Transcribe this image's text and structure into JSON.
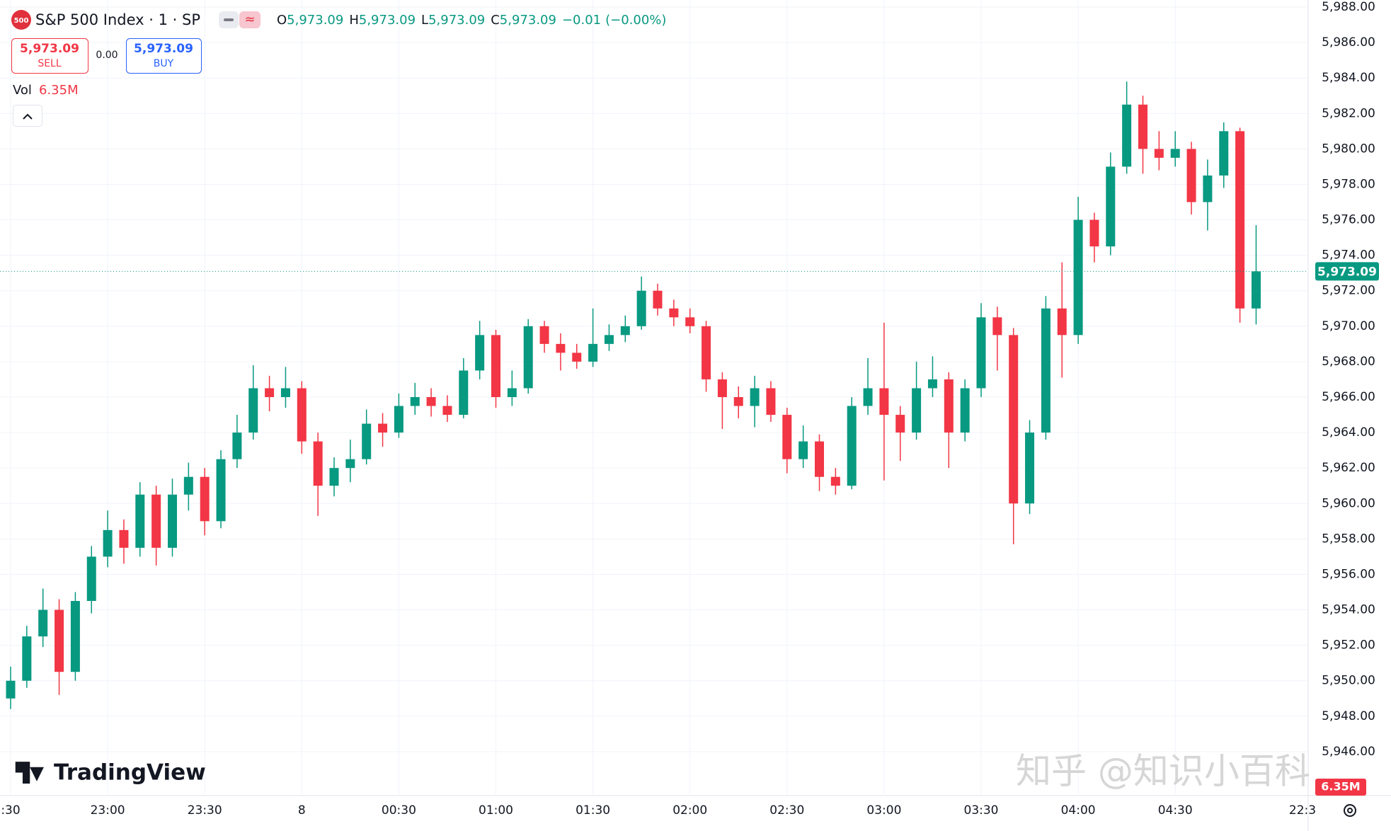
{
  "chart_data": {
    "type": "candlestick",
    "x": [
      "22:30",
      "22:35",
      "22:40",
      "22:45",
      "22:50",
      "22:55",
      "23:00",
      "23:05",
      "23:10",
      "23:15",
      "23:20",
      "23:25",
      "23:30",
      "23:35",
      "23:40",
      "23:45",
      "23:50",
      "23:55",
      "00:00",
      "00:05",
      "00:10",
      "00:15",
      "00:20",
      "00:25",
      "00:30",
      "00:35",
      "00:40",
      "00:45",
      "00:50",
      "00:55",
      "01:00",
      "01:05",
      "01:10",
      "01:15",
      "01:20",
      "01:25",
      "01:30",
      "01:35",
      "01:40",
      "01:45",
      "01:50",
      "01:55",
      "02:00",
      "02:05",
      "02:10",
      "02:15",
      "02:20",
      "02:25",
      "02:30",
      "02:35",
      "02:40",
      "02:45",
      "02:50",
      "02:55",
      "03:00",
      "03:05",
      "03:10",
      "03:15",
      "03:20",
      "03:25",
      "03:30",
      "03:35",
      "03:40",
      "03:45",
      "03:50",
      "03:55",
      "04:00",
      "04:05",
      "04:10",
      "04:15",
      "04:20",
      "04:25",
      "04:30",
      "04:35",
      "04:40",
      "04:45",
      "04:50",
      "04:55"
    ],
    "open": [
      5949.0,
      5950.0,
      5952.5,
      5954.0,
      5950.5,
      5954.5,
      5957.0,
      5958.5,
      5957.5,
      5960.5,
      5957.5,
      5960.5,
      5961.5,
      5959.0,
      5962.5,
      5964.0,
      5966.5,
      5966.0,
      5966.5,
      5963.5,
      5961.0,
      5962.0,
      5962.5,
      5964.5,
      5964.0,
      5965.5,
      5966.0,
      5965.5,
      5965.0,
      5967.5,
      5969.5,
      5966.0,
      5966.5,
      5970.0,
      5969.0,
      5968.5,
      5968.0,
      5969.0,
      5969.5,
      5970.0,
      5972.0,
      5971.0,
      5970.5,
      5970.0,
      5967.0,
      5966.0,
      5965.5,
      5966.5,
      5965.0,
      5962.5,
      5963.5,
      5961.5,
      5961.0,
      5965.5,
      5966.5,
      5965.0,
      5964.0,
      5966.5,
      5967.0,
      5964.0,
      5966.5,
      5970.5,
      5969.5,
      5960.0,
      5964.0,
      5971.0,
      5969.5,
      5976.0,
      5974.5,
      5979.0,
      5982.5,
      5980.0,
      5979.5,
      5980.0,
      5977.0,
      5978.5,
      5981.0,
      5971.0
    ],
    "high": [
      5950.8,
      5953.1,
      5955.2,
      5954.6,
      5955.0,
      5957.6,
      5959.6,
      5959.1,
      5961.2,
      5961.0,
      5961.4,
      5962.3,
      5962.0,
      5963.0,
      5965.0,
      5967.8,
      5967.2,
      5967.7,
      5966.9,
      5964.0,
      5962.6,
      5963.6,
      5965.3,
      5965.1,
      5966.2,
      5966.8,
      5966.5,
      5966.1,
      5968.2,
      5970.3,
      5969.8,
      5967.5,
      5970.4,
      5970.3,
      5969.6,
      5969.0,
      5971.0,
      5970.1,
      5970.6,
      5972.8,
      5972.4,
      5971.5,
      5971.0,
      5970.3,
      5967.4,
      5966.6,
      5967.2,
      5966.9,
      5965.4,
      5964.4,
      5963.9,
      5962.0,
      5966.0,
      5968.2,
      5970.2,
      5965.5,
      5968.0,
      5968.3,
      5967.4,
      5967.0,
      5971.3,
      5971.1,
      5969.9,
      5964.7,
      5971.7,
      5973.6,
      5977.3,
      5976.4,
      5979.8,
      5983.8,
      5983.0,
      5981.0,
      5981.0,
      5980.4,
      5979.4,
      5981.5,
      5981.2,
      5975.7
    ],
    "low": [
      5948.4,
      5949.6,
      5951.9,
      5949.2,
      5950.0,
      5953.8,
      5956.4,
      5956.6,
      5957.0,
      5956.5,
      5957.0,
      5959.6,
      5958.2,
      5958.6,
      5962.0,
      5963.6,
      5965.2,
      5965.4,
      5962.8,
      5959.3,
      5960.4,
      5961.2,
      5962.2,
      5963.2,
      5963.7,
      5965.0,
      5964.9,
      5964.6,
      5964.8,
      5967.0,
      5965.4,
      5965.5,
      5966.2,
      5968.5,
      5967.5,
      5967.6,
      5967.7,
      5968.6,
      5969.1,
      5969.8,
      5970.6,
      5970.0,
      5969.6,
      5966.3,
      5964.2,
      5964.8,
      5964.3,
      5964.6,
      5961.7,
      5962.0,
      5960.7,
      5960.5,
      5960.8,
      5965.0,
      5961.3,
      5962.4,
      5963.6,
      5966.0,
      5962.0,
      5963.5,
      5966.0,
      5967.5,
      5957.7,
      5959.4,
      5963.6,
      5967.1,
      5969.0,
      5973.6,
      5974.0,
      5978.6,
      5978.6,
      5978.8,
      5979.0,
      5976.3,
      5975.4,
      5977.8,
      5970.2,
      5970.1
    ],
    "close": [
      5950.0,
      5952.5,
      5954.0,
      5950.5,
      5954.5,
      5957.0,
      5958.5,
      5957.5,
      5960.5,
      5957.5,
      5960.5,
      5961.5,
      5959.0,
      5962.5,
      5964.0,
      5966.5,
      5966.0,
      5966.5,
      5963.5,
      5961.0,
      5962.0,
      5962.5,
      5964.5,
      5964.0,
      5965.5,
      5966.0,
      5965.5,
      5965.0,
      5967.5,
      5969.5,
      5966.0,
      5966.5,
      5970.0,
      5969.0,
      5968.5,
      5968.0,
      5969.0,
      5969.5,
      5970.0,
      5972.0,
      5971.0,
      5970.5,
      5970.0,
      5967.0,
      5966.0,
      5965.5,
      5966.5,
      5965.0,
      5962.5,
      5963.5,
      5961.5,
      5961.0,
      5965.5,
      5966.5,
      5965.0,
      5964.0,
      5966.5,
      5967.0,
      5964.0,
      5966.5,
      5970.5,
      5969.5,
      5960.0,
      5964.0,
      5971.0,
      5969.5,
      5976.0,
      5974.5,
      5979.0,
      5982.5,
      5980.0,
      5979.5,
      5980.0,
      5977.0,
      5978.5,
      5981.0,
      5971.0,
      5973.09
    ],
    "up_color": "#089981",
    "down_color": "#f23645",
    "ylim": [
      5943.6,
      5988.4
    ],
    "yticks": [
      {
        "value": 5946,
        "label": "5,946.00"
      },
      {
        "value": 5948,
        "label": "5,948.00"
      },
      {
        "value": 5950,
        "label": "5,950.00"
      },
      {
        "value": 5952,
        "label": "5,952.00"
      },
      {
        "value": 5954,
        "label": "5,954.00"
      },
      {
        "value": 5956,
        "label": "5,956.00"
      },
      {
        "value": 5958,
        "label": "5,958.00"
      },
      {
        "value": 5960,
        "label": "5,960.00"
      },
      {
        "value": 5962,
        "label": "5,962.00"
      },
      {
        "value": 5964,
        "label": "5,964.00"
      },
      {
        "value": 5966,
        "label": "5,966.00"
      },
      {
        "value": 5968,
        "label": "5,968.00"
      },
      {
        "value": 5970,
        "label": "5,970.00"
      },
      {
        "value": 5972,
        "label": "5,972.00"
      },
      {
        "value": 5974,
        "label": "5,974.00"
      },
      {
        "value": 5976,
        "label": "5,976.00"
      },
      {
        "value": 5978,
        "label": "5,978.00"
      },
      {
        "value": 5980,
        "label": "5,980.00"
      },
      {
        "value": 5982,
        "label": "5,982.00"
      },
      {
        "value": 5984,
        "label": "5,984.00"
      },
      {
        "value": 5986,
        "label": "5,986.00"
      },
      {
        "value": 5988,
        "label": "5,988.00"
      }
    ],
    "xticks": [
      {
        "value": "22:30",
        "label": ":30"
      },
      {
        "value": "23:00",
        "label": "23:00"
      },
      {
        "value": "23:30",
        "label": "23:30"
      },
      {
        "value": "00:00",
        "label": "8"
      },
      {
        "value": "00:30",
        "label": "00:30"
      },
      {
        "value": "01:00",
        "label": "01:00"
      },
      {
        "value": "01:30",
        "label": "01:30"
      },
      {
        "value": "02:00",
        "label": "02:00"
      },
      {
        "value": "02:30",
        "label": "02:30"
      },
      {
        "value": "03:00",
        "label": "03:00"
      },
      {
        "value": "03:30",
        "label": "03:30"
      },
      {
        "value": "04:00",
        "label": "04:00"
      },
      {
        "value": "04:30",
        "label": "04:30"
      }
    ],
    "grid": true
  },
  "header": {
    "logo": "500",
    "title": "S&P 500 Index · 1 · SP",
    "ohlc": [
      [
        "O",
        "5,973.09"
      ],
      [
        "H",
        "5,973.09"
      ],
      [
        "L",
        "5,973.09"
      ],
      [
        "C",
        "5,973.09"
      ]
    ],
    "change": "−0.01",
    "change_pct": "(−0.00%)",
    "sell_price": "5,973.09",
    "sell": "SELL",
    "spread": "0.00",
    "buy_price": "5,973.09",
    "buy": "BUY",
    "volume_label": "Vol",
    "volume": "6.35M"
  },
  "axis_extra_label": "22:3",
  "watermark": {
    "brand": "TradingView",
    "source": "知乎 @知识小百科"
  }
}
